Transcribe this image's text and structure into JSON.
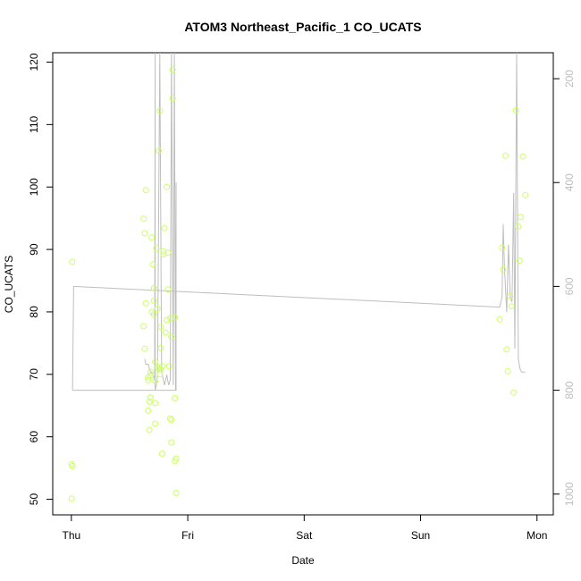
{
  "chart_data": {
    "type": "scatter",
    "title": "ATOM3 Northeast_Pacific_1 CO_UCATS",
    "xlabel": "Date",
    "ylabel": "CO_UCATS",
    "x_ticks": [
      {
        "label": "Thu",
        "value": 0
      },
      {
        "label": "Fri",
        "value": 1
      },
      {
        "label": "Sat",
        "value": 2
      },
      {
        "label": "Sun",
        "value": 3
      },
      {
        "label": "Mon",
        "value": 4
      }
    ],
    "xlim": [
      -0.16,
      4.14
    ],
    "ylim": [
      47.5,
      121.5
    ],
    "y_ticks": [
      50,
      60,
      70,
      80,
      90,
      100,
      110,
      120
    ],
    "y2_ticks": [
      200,
      400,
      600,
      800,
      1000
    ],
    "y2lim": [
      1040,
      150
    ],
    "point_color": "#ccff66",
    "line_color": "#bebebe",
    "series": [
      {
        "kind": "points",
        "points": [
          [
            0.007,
            88.0
          ],
          [
            0.003,
            55.6
          ],
          [
            0.009,
            55.3
          ],
          [
            0.003,
            50.1
          ],
          [
            0.62,
            94.9
          ],
          [
            0.64,
            99.5
          ],
          [
            0.63,
            92.6
          ],
          [
            0.62,
            77.7
          ],
          [
            0.63,
            74.1
          ],
          [
            0.64,
            81.4
          ],
          [
            0.66,
            69.5
          ],
          [
            0.66,
            69.1
          ],
          [
            0.66,
            64.2
          ],
          [
            0.67,
            61.1
          ],
          [
            0.67,
            65.6
          ],
          [
            0.68,
            66.3
          ],
          [
            0.68,
            66.3
          ],
          [
            0.68,
            69.8
          ],
          [
            0.68,
            70.4
          ],
          [
            0.69,
            80.0
          ],
          [
            0.69,
            91.9
          ],
          [
            0.7,
            87.6
          ],
          [
            0.71,
            79.6
          ],
          [
            0.71,
            83.8
          ],
          [
            0.71,
            81.8
          ],
          [
            0.72,
            68.9
          ],
          [
            0.72,
            65.4
          ],
          [
            0.72,
            62.1
          ],
          [
            0.72,
            72.0
          ],
          [
            0.73,
            90.2
          ],
          [
            0.74,
            71.1
          ],
          [
            0.74,
            80.5
          ],
          [
            0.75,
            105.8
          ],
          [
            0.75,
            71.0
          ],
          [
            0.76,
            112.2
          ],
          [
            0.76,
            70.0
          ],
          [
            0.77,
            77.6
          ],
          [
            0.77,
            74.2
          ],
          [
            0.77,
            70.8
          ],
          [
            0.78,
            71.3
          ],
          [
            0.78,
            57.3
          ],
          [
            0.79,
            89.7
          ],
          [
            0.79,
            89.2
          ],
          [
            0.8,
            93.4
          ],
          [
            0.81,
            76.7
          ],
          [
            0.82,
            100.0
          ],
          [
            0.82,
            78.7
          ],
          [
            0.83,
            89.5
          ],
          [
            0.83,
            83.6
          ],
          [
            0.84,
            71.3
          ],
          [
            0.85,
            79.0
          ],
          [
            0.85,
            62.9
          ],
          [
            0.86,
            62.7
          ],
          [
            0.86,
            76.0
          ],
          [
            0.86,
            59.1
          ],
          [
            0.87,
            118.8
          ],
          [
            0.87,
            114.2
          ],
          [
            0.89,
            79.1
          ],
          [
            0.89,
            66.2
          ],
          [
            0.89,
            56.1
          ],
          [
            0.9,
            56.5
          ],
          [
            0.9,
            51.0
          ],
          [
            3.68,
            78.8
          ],
          [
            3.7,
            90.3
          ],
          [
            3.71,
            86.8
          ],
          [
            3.73,
            105.0
          ],
          [
            3.74,
            74.0
          ],
          [
            3.75,
            70.5
          ],
          [
            3.77,
            82.5
          ],
          [
            3.78,
            80.9
          ],
          [
            3.8,
            67.1
          ],
          [
            3.82,
            112.3
          ],
          [
            3.84,
            93.7
          ],
          [
            3.85,
            88.2
          ],
          [
            3.86,
            95.2
          ],
          [
            3.88,
            104.9
          ],
          [
            3.9,
            98.7
          ]
        ]
      },
      {
        "kind": "line",
        "axis": "right",
        "points": [
          [
            0.01,
            800
          ],
          [
            0.02,
            600
          ],
          [
            3.68,
            640
          ],
          [
            3.7,
            620
          ],
          [
            3.71,
            480
          ],
          [
            3.72,
            560
          ],
          [
            3.74,
            650
          ],
          [
            3.755,
            520
          ],
          [
            3.77,
            620
          ],
          [
            3.785,
            630
          ],
          [
            3.8,
            420
          ],
          [
            3.81,
            720
          ],
          [
            3.825,
            100
          ],
          [
            3.84,
            740
          ],
          [
            3.855,
            760
          ],
          [
            3.87,
            765
          ],
          [
            3.9,
            765
          ]
        ]
      },
      {
        "kind": "line",
        "axis": "right",
        "points": [
          [
            0.01,
            800
          ],
          [
            0.9,
            800
          ],
          [
            0.9,
            400
          ],
          [
            0.895,
            800
          ],
          [
            0.885,
            100
          ],
          [
            0.875,
            790
          ],
          [
            0.86,
            100
          ],
          [
            0.85,
            780
          ],
          [
            0.835,
            790
          ],
          [
            0.82,
            770
          ],
          [
            0.8,
            790
          ],
          [
            0.79,
            780
          ],
          [
            0.78,
            770
          ],
          [
            0.775,
            760
          ],
          [
            0.76,
            100
          ],
          [
            0.74,
            770
          ],
          [
            0.73,
            790
          ],
          [
            0.72,
            800
          ],
          [
            0.72,
            100
          ],
          [
            0.715,
            780
          ],
          [
            0.7,
            770
          ],
          [
            0.69,
            765
          ],
          [
            0.68,
            765
          ],
          [
            0.66,
            750
          ],
          [
            0.64,
            750
          ],
          [
            0.63,
            740
          ]
        ]
      }
    ]
  }
}
